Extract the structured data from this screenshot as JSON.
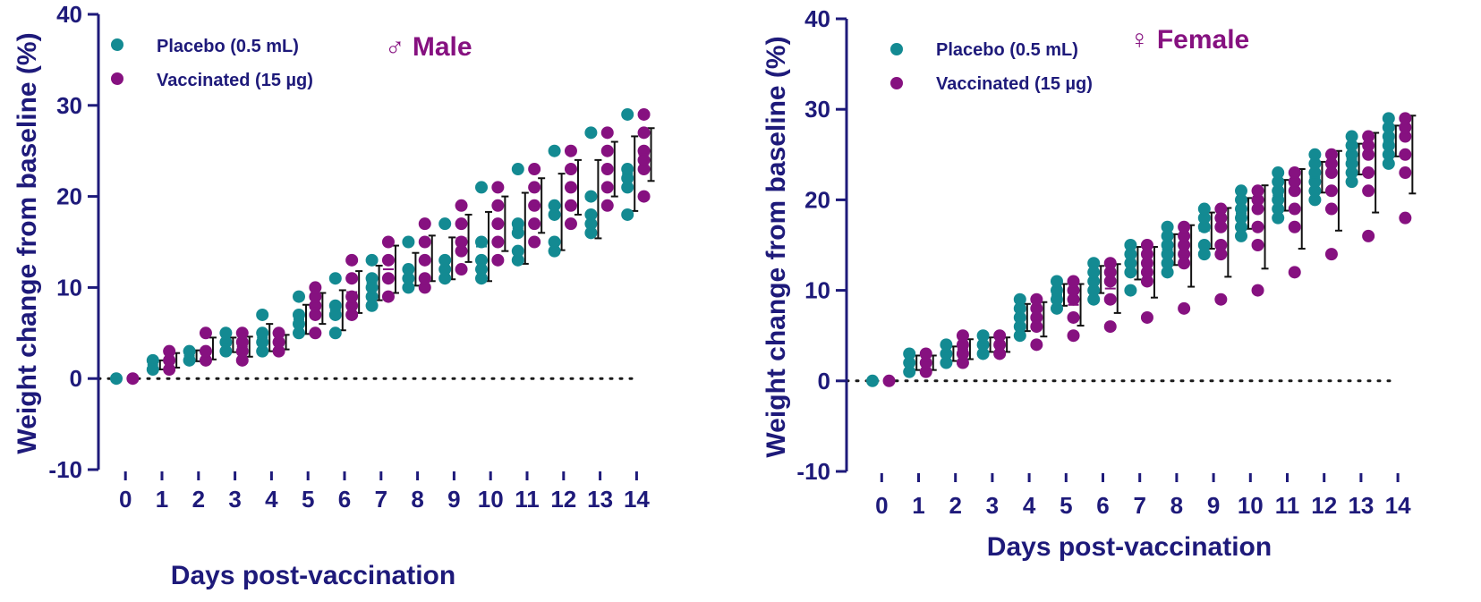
{
  "colors": {
    "placebo": "#138a92",
    "vaccinated": "#861180",
    "axis": "#1e1a7a"
  },
  "chart_data": [
    {
      "type": "scatter",
      "title": "♂ Male",
      "sex_symbol": "♂",
      "sex_word": "Male",
      "xlabel": "Days post-vaccination",
      "ylabel": "Weight change from baseline (%)",
      "ylim": [
        -10,
        40
      ],
      "yticks": [
        -10,
        0,
        10,
        20,
        30,
        40
      ],
      "x": [
        0,
        1,
        2,
        3,
        4,
        5,
        6,
        7,
        8,
        9,
        10,
        11,
        12,
        13,
        14
      ],
      "legend": {
        "position": "top-left",
        "entries": [
          "Placebo (0.5 mL)",
          "Vaccinated (15 µg)"
        ]
      },
      "series": [
        {
          "name": "Placebo (0.5 mL)",
          "points": [
            [
              0
            ],
            [
              1,
              2
            ],
            [
              2,
              3
            ],
            [
              3,
              4,
              5
            ],
            [
              3,
              4,
              5,
              7
            ],
            [
              5,
              6,
              7,
              9
            ],
            [
              5,
              7,
              8,
              11
            ],
            [
              8,
              9,
              10,
              11,
              13
            ],
            [
              10,
              11,
              12,
              15
            ],
            [
              11,
              12,
              13,
              17
            ],
            [
              11,
              12,
              13,
              15,
              21
            ],
            [
              13,
              14,
              16,
              17,
              23
            ],
            [
              14,
              15,
              18,
              19,
              25
            ],
            [
              16,
              17,
              18,
              20,
              27
            ],
            [
              18,
              21,
              22,
              23,
              29
            ]
          ],
          "mean": [
            0,
            1.5,
            2.5,
            3.7,
            4.5,
            6.5,
            7.5,
            10.5,
            12,
            13.2,
            14.5,
            16.5,
            18.3,
            19.7,
            22.5
          ],
          "sd": [
            0,
            0.5,
            0.6,
            0.8,
            1.5,
            1.6,
            2.2,
            1.9,
            1.8,
            2.3,
            3.8,
            3.9,
            4.2,
            4.3,
            4.1
          ]
        },
        {
          "name": "Vaccinated (15 µg)",
          "points": [
            [
              0
            ],
            [
              1,
              2,
              3
            ],
            [
              2,
              3,
              5
            ],
            [
              2,
              3,
              4,
              5
            ],
            [
              3,
              4,
              5
            ],
            [
              5,
              7,
              8,
              9,
              10
            ],
            [
              7,
              8,
              9,
              11,
              13
            ],
            [
              9,
              11,
              13,
              15
            ],
            [
              10,
              11,
              13,
              15,
              17
            ],
            [
              12,
              14,
              15,
              17,
              19
            ],
            [
              13,
              15,
              17,
              19,
              21
            ],
            [
              15,
              17,
              19,
              21,
              23
            ],
            [
              17,
              19,
              21,
              23,
              25
            ],
            [
              19,
              21,
              23,
              25,
              27
            ],
            [
              20,
              23,
              24,
              25,
              27,
              29
            ]
          ],
          "mean": [
            0,
            2,
            3.3,
            3.5,
            4,
            7.7,
            9.5,
            12,
            13.2,
            15.4,
            17,
            19,
            21,
            23,
            24.6
          ],
          "sd": [
            0,
            0.8,
            1.2,
            1.1,
            0.8,
            1.7,
            2.3,
            2.6,
            2.5,
            2.6,
            3,
            3,
            3,
            3,
            2.9
          ]
        }
      ]
    },
    {
      "type": "scatter",
      "title": "♀ Female",
      "sex_symbol": "♀",
      "sex_word": "Female",
      "xlabel": "Days post-vaccination",
      "ylabel": "Weight change from baseline (%)",
      "ylim": [
        -10,
        40
      ],
      "yticks": [
        -10,
        0,
        10,
        20,
        30,
        40
      ],
      "x": [
        0,
        1,
        2,
        3,
        4,
        5,
        6,
        7,
        8,
        9,
        10,
        11,
        12,
        13,
        14
      ],
      "legend": {
        "position": "top-left",
        "entries": [
          "Placebo (0.5 mL)",
          "Vaccinated (15 µg)"
        ]
      },
      "series": [
        {
          "name": "Placebo (0.5 mL)",
          "points": [
            [
              0
            ],
            [
              1,
              2,
              3
            ],
            [
              2,
              3,
              4
            ],
            [
              3,
              4,
              5
            ],
            [
              5,
              6,
              7,
              8,
              9
            ],
            [
              8,
              9,
              10,
              11
            ],
            [
              9,
              10,
              11,
              12,
              13
            ],
            [
              10,
              12,
              13,
              14,
              15
            ],
            [
              12,
              13,
              14,
              15,
              16,
              17
            ],
            [
              14,
              15,
              17,
              18,
              19
            ],
            [
              16,
              17,
              18,
              19,
              20,
              21
            ],
            [
              18,
              19,
              20,
              21,
              22,
              23
            ],
            [
              20,
              21,
              22,
              23,
              24,
              25
            ],
            [
              22,
              23,
              24,
              25,
              26,
              27
            ],
            [
              24,
              25,
              26,
              27,
              28,
              29
            ]
          ],
          "mean": [
            0,
            2,
            3,
            4,
            7,
            9.5,
            11.2,
            13,
            14.5,
            16.6,
            18.5,
            20.5,
            22.5,
            24.5,
            26.5
          ],
          "sd": [
            0,
            0.8,
            0.8,
            0.8,
            1.5,
            1.2,
            1.5,
            1.8,
            1.7,
            2,
            1.7,
            1.7,
            1.7,
            1.7,
            1.7
          ]
        },
        {
          "name": "Vaccinated (15 µg)",
          "points": [
            [
              0
            ],
            [
              1,
              2,
              3
            ],
            [
              2,
              3,
              4,
              5
            ],
            [
              3,
              4,
              5
            ],
            [
              4,
              6,
              7,
              8,
              9
            ],
            [
              5,
              7,
              9,
              10,
              11
            ],
            [
              6,
              9,
              11,
              12,
              13
            ],
            [
              7,
              11,
              12,
              13,
              14,
              15
            ],
            [
              8,
              13,
              14,
              15,
              16,
              17
            ],
            [
              9,
              14,
              15,
              17,
              18,
              19
            ],
            [
              10,
              15,
              17,
              19,
              20,
              21
            ],
            [
              12,
              17,
              19,
              21,
              22,
              23
            ],
            [
              14,
              19,
              21,
              23,
              24,
              25
            ],
            [
              16,
              21,
              23,
              25,
              26,
              27
            ],
            [
              18,
              23,
              25,
              27,
              28,
              29
            ]
          ],
          "mean": [
            0,
            2,
            3.5,
            4,
            6.8,
            8.4,
            10.2,
            12,
            13.8,
            15.3,
            17,
            19,
            21,
            23,
            25
          ],
          "sd": [
            0,
            0.8,
            1.1,
            0.8,
            1.9,
            2.3,
            2.7,
            2.8,
            3.4,
            3.8,
            4.6,
            4.4,
            4.4,
            4.4,
            4.3
          ]
        }
      ]
    }
  ]
}
